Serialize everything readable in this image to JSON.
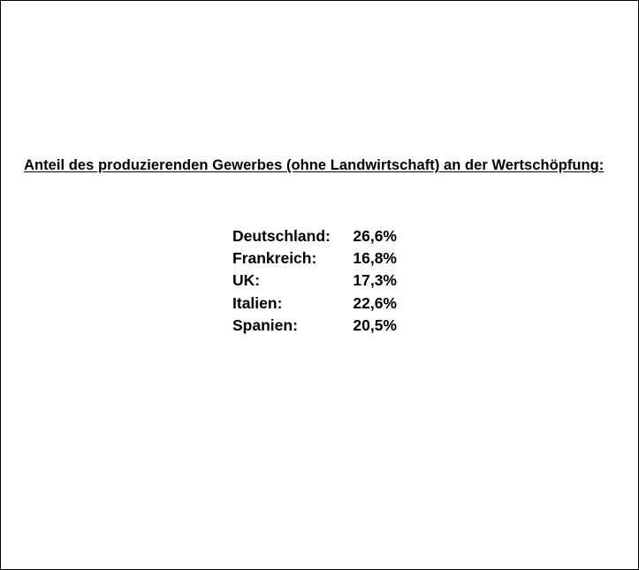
{
  "heading": "Anteil des produzierenden Gewerbes (ohne Landwirtschaft) an der Wertschöpfung:",
  "rows": [
    {
      "country": "Deutschland:",
      "value": "26,6%"
    },
    {
      "country": "Frankreich:",
      "value": "16,8%"
    },
    {
      "country": "UK:",
      "value": "17,3%"
    },
    {
      "country": "Italien:",
      "value": "22,6%"
    },
    {
      "country": "Spanien:",
      "value": "20,5%"
    }
  ]
}
